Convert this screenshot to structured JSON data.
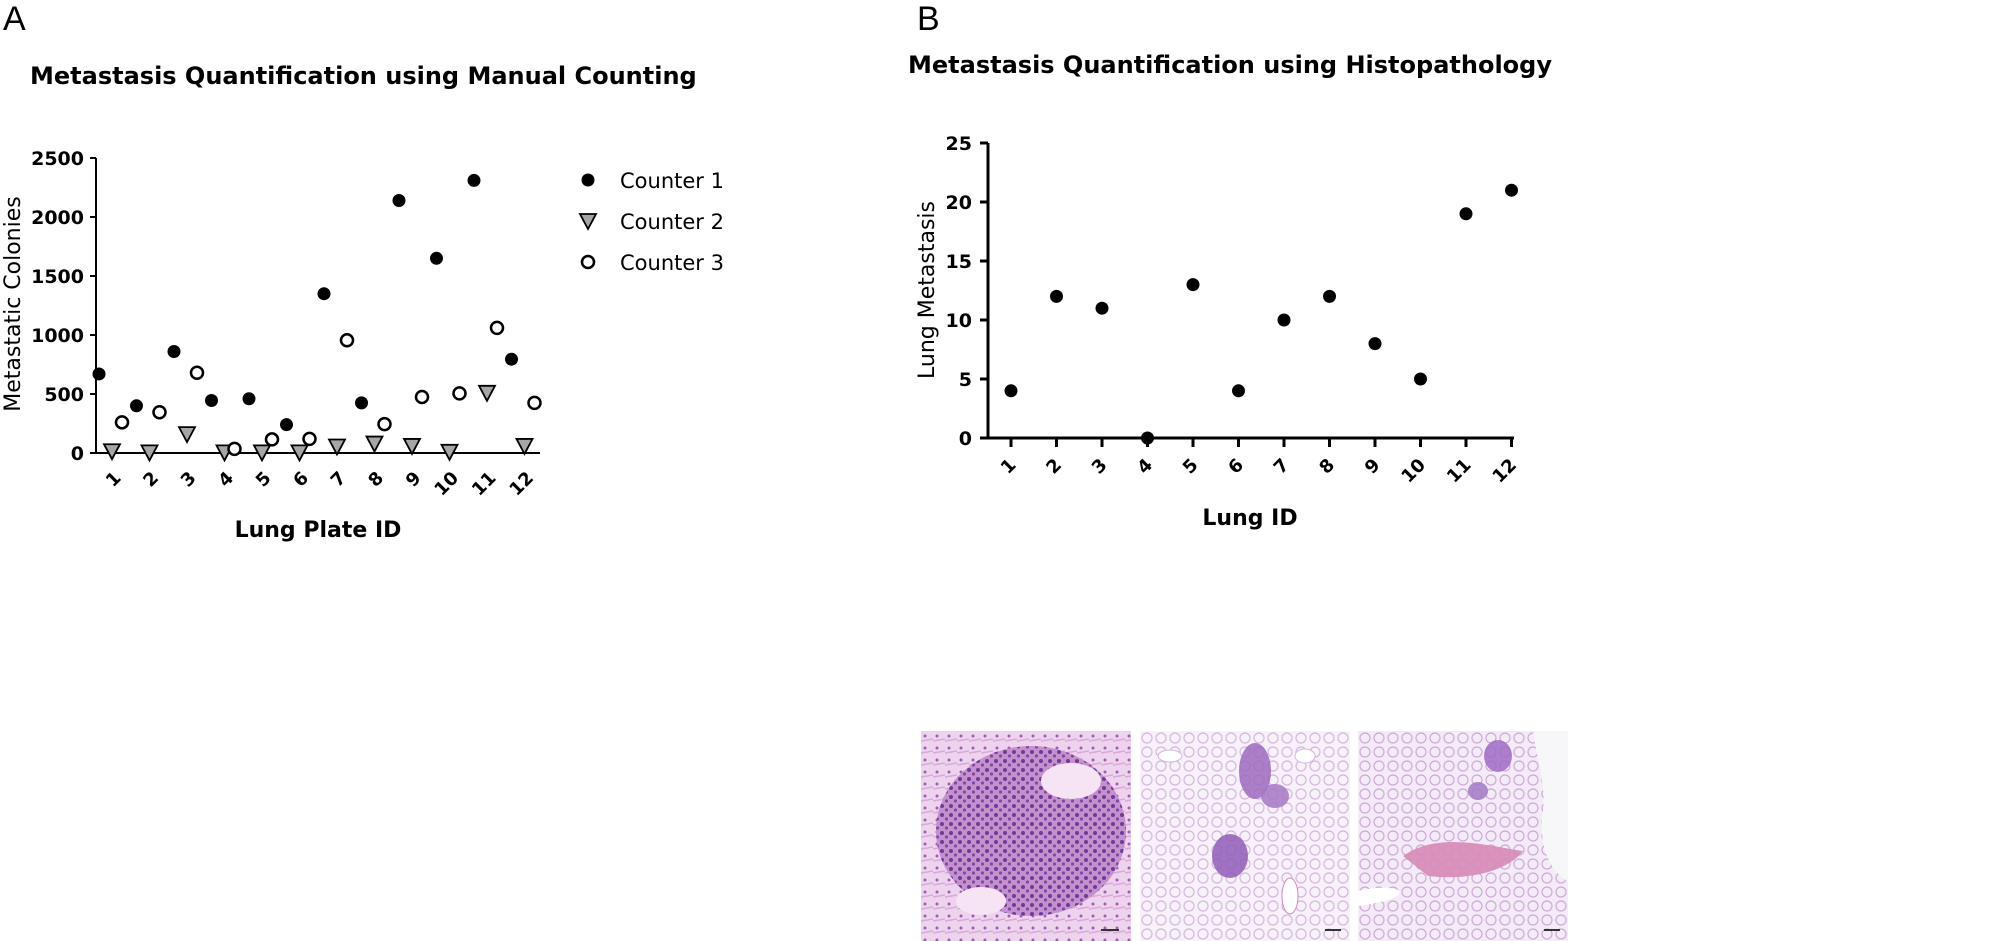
{
  "panels": {
    "a": {
      "label": "A"
    },
    "b": {
      "label": "B"
    }
  },
  "colors": {
    "counter2_fill": "#a6a6a6",
    "axis": "#000000"
  },
  "chart_data": [
    {
      "id": "manual-counting",
      "type": "scatter",
      "title": "Metastasis Quantification using Manual Counting",
      "xlabel": "Lung Plate ID",
      "ylabel": "Metastatic Colonies",
      "categories": [
        "1",
        "2",
        "3",
        "4",
        "5",
        "6",
        "7",
        "8",
        "9",
        "10",
        "11",
        "12"
      ],
      "ylim": [
        0,
        2500
      ],
      "yticks": [
        0,
        500,
        1000,
        1500,
        2000,
        2500
      ],
      "legend_position": "right",
      "series": [
        {
          "name": "Counter 1",
          "marker": "filled-circle",
          "values": [
            670,
            400,
            860,
            445,
            460,
            240,
            1350,
            425,
            2140,
            1650,
            2310,
            795
          ]
        },
        {
          "name": "Counter 2",
          "marker": "gray-triangle-down",
          "values": [
            15,
            5,
            160,
            5,
            5,
            5,
            55,
            80,
            60,
            10,
            510,
            60
          ]
        },
        {
          "name": "Counter 3",
          "marker": "open-circle",
          "values": [
            260,
            345,
            680,
            35,
            115,
            120,
            955,
            245,
            475,
            505,
            1060,
            425
          ]
        }
      ]
    },
    {
      "id": "histopathology",
      "type": "scatter",
      "title": "Metastasis Quantification using Histopathology",
      "xlabel": "Lung ID",
      "ylabel": "Lung Metastasis",
      "categories": [
        "1",
        "2",
        "3",
        "4",
        "5",
        "6",
        "7",
        "8",
        "9",
        "10",
        "11",
        "12"
      ],
      "ylim": [
        0,
        25
      ],
      "yticks": [
        0,
        5,
        10,
        15,
        20,
        25
      ],
      "series": [
        {
          "name": "Lung Metastasis",
          "marker": "filled-circle",
          "values": [
            4,
            12,
            11,
            0,
            13,
            4,
            10,
            12,
            8,
            5,
            19,
            21
          ]
        }
      ]
    }
  ],
  "histology_images": [
    {
      "name": "high magnification tumor nodule"
    },
    {
      "name": "low magnification lung with nodules"
    },
    {
      "name": "low magnification lung with large lesion"
    }
  ]
}
